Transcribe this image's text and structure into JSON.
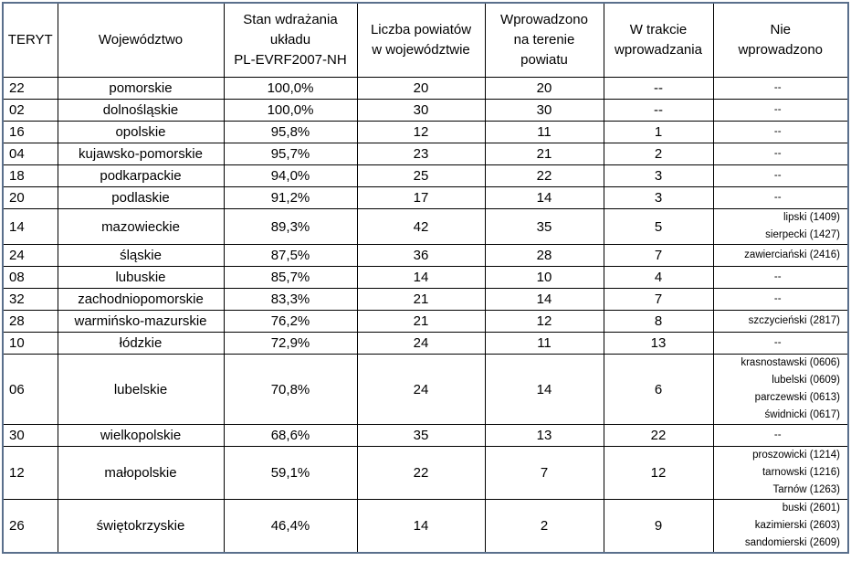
{
  "table": {
    "header": [
      [
        "TERYT"
      ],
      [
        "Województwo"
      ],
      [
        "Stan wdrażania",
        "układu",
        "PL-EVRF2007-NH"
      ],
      [
        "Liczba powiatów",
        "w województwie"
      ],
      [
        "Wprowadzono",
        "na terenie",
        "powiatu"
      ],
      [
        "W trakcie",
        "wprowadzania"
      ],
      [
        "Nie",
        "wprowadzono"
      ]
    ],
    "rows": [
      [
        "22",
        "pomorskie",
        "100,0%",
        "20",
        "20",
        "--",
        [
          "--"
        ]
      ],
      [
        "02",
        "dolnośląskie",
        "100,0%",
        "30",
        "30",
        "--",
        [
          "--"
        ]
      ],
      [
        "16",
        "opolskie",
        "95,8%",
        "12",
        "11",
        "1",
        [
          "--"
        ]
      ],
      [
        "04",
        "kujawsko-pomorskie",
        "95,7%",
        "23",
        "21",
        "2",
        [
          "--"
        ]
      ],
      [
        "18",
        "podkarpackie",
        "94,0%",
        "25",
        "22",
        "3",
        [
          "--"
        ]
      ],
      [
        "20",
        "podlaskie",
        "91,2%",
        "17",
        "14",
        "3",
        [
          "--"
        ]
      ],
      [
        "14",
        "mazowieckie",
        "89,3%",
        "42",
        "35",
        "5",
        [
          "lipski (1409)",
          "sierpecki (1427)"
        ]
      ],
      [
        "24",
        "śląskie",
        "87,5%",
        "36",
        "28",
        "7",
        [
          "zawierciański (2416)"
        ]
      ],
      [
        "08",
        "lubuskie",
        "85,7%",
        "14",
        "10",
        "4",
        [
          "--"
        ]
      ],
      [
        "32",
        "zachodniopomorskie",
        "83,3%",
        "21",
        "14",
        "7",
        [
          "--"
        ]
      ],
      [
        "28",
        "warmińsko-mazurskie",
        "76,2%",
        "21",
        "12",
        "8",
        [
          "szczycieński (2817)"
        ]
      ],
      [
        "10",
        "łódzkie",
        "72,9%",
        "24",
        "11",
        "13",
        [
          "--"
        ]
      ],
      [
        "06",
        "lubelskie",
        "70,8%",
        "24",
        "14",
        "6",
        [
          "krasnostawski (0606)",
          "lubelski (0609)",
          "parczewski (0613)",
          "świdnicki (0617)"
        ]
      ],
      [
        "30",
        "wielkopolskie",
        "68,6%",
        "35",
        "13",
        "22",
        [
          "--"
        ]
      ],
      [
        "12",
        "małopolskie",
        "59,1%",
        "22",
        "7",
        "12",
        [
          "proszowicki (1214)",
          "tarnowski (1216)",
          "Tarnów (1263)"
        ]
      ],
      [
        "26",
        "świętokrzyskie",
        "46,4%",
        "14",
        "2",
        "9",
        [
          "buski (2601)",
          "kazimierski (2603)",
          "sandomierski (2609)"
        ]
      ]
    ]
  }
}
